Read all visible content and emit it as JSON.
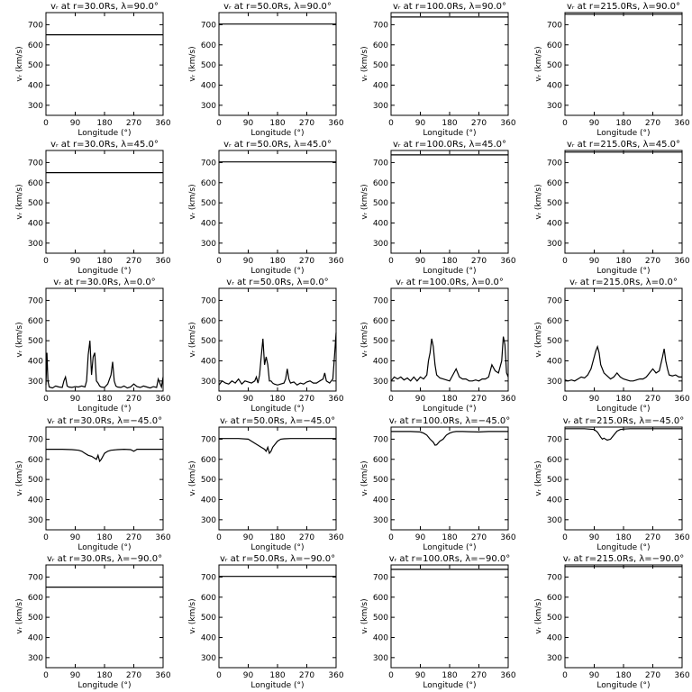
{
  "figure": {
    "xlabel": "Longitude (°)",
    "ylabel": "vᵣ (km/s)",
    "xlim": [
      0,
      360
    ],
    "ylim": [
      250,
      760
    ],
    "xticks": [
      0,
      90,
      180,
      270,
      360
    ],
    "yticks": [
      300,
      400,
      500,
      600,
      700
    ]
  },
  "chart_data": [
    {
      "type": "line",
      "title": "vᵣ at r=30.0Rs, λ=90.0°",
      "x": [
        0,
        360
      ],
      "series": [
        {
          "values": [
            650,
            650
          ]
        }
      ]
    },
    {
      "type": "line",
      "title": "vᵣ at r=50.0Rs, λ=90.0°",
      "x": [
        0,
        360
      ],
      "series": [
        {
          "values": [
            703,
            703
          ]
        }
      ]
    },
    {
      "type": "line",
      "title": "vᵣ at r=100.0Rs, λ=90.0°",
      "x": [
        0,
        360
      ],
      "series": [
        {
          "values": [
            738,
            738
          ]
        }
      ]
    },
    {
      "type": "line",
      "title": "vᵣ at r=215.0Rs, λ=90.0°",
      "x": [
        0,
        360
      ],
      "series": [
        {
          "values": [
            752,
            752
          ]
        }
      ]
    },
    {
      "type": "line",
      "title": "vᵣ at r=30.0Rs, λ=45.0°",
      "x": [
        0,
        360
      ],
      "series": [
        {
          "values": [
            650,
            650
          ]
        }
      ]
    },
    {
      "type": "line",
      "title": "vᵣ at r=50.0Rs, λ=45.0°",
      "x": [
        0,
        360
      ],
      "series": [
        {
          "values": [
            703,
            703
          ]
        }
      ]
    },
    {
      "type": "line",
      "title": "vᵣ at r=100.0Rs, λ=45.0°",
      "x": [
        0,
        360
      ],
      "series": [
        {
          "values": [
            738,
            738
          ]
        }
      ]
    },
    {
      "type": "line",
      "title": "vᵣ at r=215.0Rs, λ=45.0°",
      "x": [
        0,
        360
      ],
      "series": [
        {
          "values": [
            752,
            752
          ]
        }
      ]
    },
    {
      "type": "line",
      "title": "vᵣ at r=30.0Rs, λ=0.0°",
      "x": [
        0,
        3,
        6,
        10,
        20,
        30,
        40,
        50,
        55,
        60,
        65,
        70,
        80,
        90,
        100,
        110,
        120,
        125,
        130,
        135,
        140,
        145,
        150,
        155,
        160,
        165,
        170,
        180,
        190,
        200,
        205,
        210,
        215,
        220,
        230,
        240,
        250,
        260,
        270,
        280,
        290,
        300,
        310,
        320,
        330,
        340,
        345,
        350,
        355,
        360
      ],
      "series": [
        {
          "values": [
            280,
            440,
            300,
            270,
            265,
            275,
            270,
            268,
            300,
            320,
            275,
            270,
            268,
            272,
            270,
            275,
            270,
            300,
            430,
            500,
            330,
            420,
            440,
            300,
            290,
            275,
            270,
            268,
            285,
            330,
            395,
            300,
            275,
            270,
            268,
            275,
            265,
            270,
            285,
            272,
            268,
            275,
            270,
            265,
            272,
            268,
            310,
            290,
            270,
            320
          ]
        }
      ]
    },
    {
      "type": "line",
      "title": "vᵣ at r=50.0Rs, λ=0.0°",
      "x": [
        0,
        10,
        20,
        30,
        40,
        50,
        60,
        70,
        80,
        90,
        100,
        110,
        115,
        120,
        125,
        130,
        135,
        140,
        145,
        150,
        155,
        160,
        165,
        170,
        180,
        190,
        200,
        205,
        210,
        215,
        220,
        230,
        240,
        250,
        260,
        270,
        280,
        290,
        300,
        310,
        320,
        325,
        330,
        340,
        350,
        355,
        360
      ],
      "series": [
        {
          "values": [
            280,
            300,
            290,
            285,
            300,
            290,
            310,
            285,
            300,
            295,
            290,
            300,
            320,
            290,
            330,
            420,
            510,
            380,
            420,
            380,
            300,
            300,
            290,
            285,
            280,
            285,
            290,
            310,
            360,
            310,
            290,
            295,
            280,
            290,
            285,
            295,
            300,
            290,
            290,
            300,
            310,
            340,
            300,
            290,
            310,
            420,
            540
          ]
        }
      ]
    },
    {
      "type": "line",
      "title": "vᵣ at r=100.0Rs, λ=0.0°",
      "x": [
        0,
        10,
        20,
        30,
        40,
        50,
        60,
        70,
        80,
        90,
        100,
        110,
        115,
        120,
        125,
        130,
        135,
        140,
        150,
        160,
        170,
        180,
        190,
        200,
        210,
        220,
        230,
        240,
        250,
        260,
        270,
        280,
        290,
        300,
        310,
        320,
        330,
        340,
        345,
        350,
        355,
        360
      ],
      "series": [
        {
          "values": [
            300,
            320,
            310,
            320,
            305,
            315,
            300,
            320,
            300,
            320,
            310,
            330,
            400,
            440,
            510,
            470,
            380,
            330,
            315,
            310,
            305,
            300,
            330,
            360,
            320,
            310,
            310,
            300,
            300,
            305,
            300,
            310,
            310,
            320,
            380,
            350,
            340,
            400,
            520,
            480,
            340,
            320
          ]
        }
      ]
    },
    {
      "type": "line",
      "title": "vᵣ at r=215.0Rs, λ=0.0°",
      "x": [
        0,
        10,
        20,
        30,
        40,
        50,
        60,
        70,
        80,
        90,
        95,
        100,
        105,
        110,
        120,
        130,
        140,
        150,
        160,
        170,
        180,
        190,
        200,
        210,
        220,
        230,
        240,
        250,
        260,
        270,
        280,
        290,
        300,
        305,
        310,
        315,
        320,
        330,
        340,
        350,
        360
      ],
      "series": [
        {
          "values": [
            305,
            300,
            305,
            300,
            310,
            320,
            315,
            330,
            360,
            420,
            450,
            470,
            440,
            380,
            340,
            325,
            310,
            320,
            340,
            320,
            310,
            305,
            300,
            300,
            305,
            310,
            310,
            320,
            340,
            360,
            340,
            350,
            420,
            460,
            400,
            360,
            330,
            325,
            330,
            320,
            320
          ]
        }
      ]
    },
    {
      "type": "line",
      "title": "vᵣ at r=30.0Rs, λ=−45.0°",
      "x": [
        0,
        50,
        80,
        100,
        110,
        120,
        130,
        140,
        150,
        155,
        160,
        165,
        170,
        180,
        190,
        200,
        220,
        240,
        260,
        270,
        275,
        280,
        300,
        330,
        360
      ],
      "series": [
        {
          "values": [
            650,
            650,
            648,
            645,
            640,
            630,
            620,
            615,
            605,
            600,
            620,
            590,
            600,
            630,
            640,
            645,
            648,
            650,
            648,
            640,
            645,
            650,
            650,
            650,
            650
          ]
        }
      ]
    },
    {
      "type": "line",
      "title": "vᵣ at r=50.0Rs, λ=−45.0°",
      "x": [
        0,
        60,
        90,
        100,
        110,
        120,
        130,
        140,
        145,
        150,
        155,
        160,
        165,
        170,
        180,
        190,
        200,
        220,
        240,
        270,
        300,
        330,
        360
      ],
      "series": [
        {
          "values": [
            703,
            703,
            700,
            690,
            680,
            670,
            660,
            650,
            640,
            660,
            630,
            640,
            660,
            670,
            690,
            700,
            702,
            703,
            703,
            703,
            703,
            703,
            703
          ]
        }
      ]
    },
    {
      "type": "line",
      "title": "vᵣ at r=100.0Rs, λ=−45.0°",
      "x": [
        0,
        60,
        90,
        100,
        110,
        120,
        130,
        135,
        140,
        150,
        160,
        170,
        180,
        190,
        200,
        220,
        240,
        270,
        300,
        330,
        360
      ],
      "series": [
        {
          "values": [
            738,
            738,
            736,
            730,
            720,
            700,
            685,
            670,
            672,
            690,
            700,
            720,
            730,
            736,
            738,
            738,
            737,
            736,
            738,
            738,
            738
          ]
        }
      ]
    },
    {
      "type": "line",
      "title": "vᵣ at r=215.0Rs, λ=−45.0°",
      "x": [
        0,
        60,
        90,
        100,
        110,
        115,
        120,
        130,
        140,
        150,
        160,
        170,
        180,
        200,
        240,
        270,
        300,
        330,
        360
      ],
      "series": [
        {
          "values": [
            752,
            752,
            748,
            735,
            710,
            700,
            705,
            695,
            700,
            720,
            740,
            748,
            750,
            752,
            752,
            752,
            752,
            752,
            752
          ]
        }
      ]
    },
    {
      "type": "line",
      "title": "vᵣ at r=30.0Rs, λ=−90.0°",
      "x": [
        0,
        360
      ],
      "series": [
        {
          "values": [
            650,
            650
          ]
        }
      ]
    },
    {
      "type": "line",
      "title": "vᵣ at r=50.0Rs, λ=−90.0°",
      "x": [
        0,
        360
      ],
      "series": [
        {
          "values": [
            703,
            703
          ]
        }
      ]
    },
    {
      "type": "line",
      "title": "vᵣ at r=100.0Rs, λ=−90.0°",
      "x": [
        0,
        360
      ],
      "series": [
        {
          "values": [
            738,
            738
          ]
        }
      ]
    },
    {
      "type": "line",
      "title": "vᵣ at r=215.0Rs, λ=−90.0°",
      "x": [
        0,
        360
      ],
      "series": [
        {
          "values": [
            752,
            752
          ]
        }
      ]
    }
  ]
}
